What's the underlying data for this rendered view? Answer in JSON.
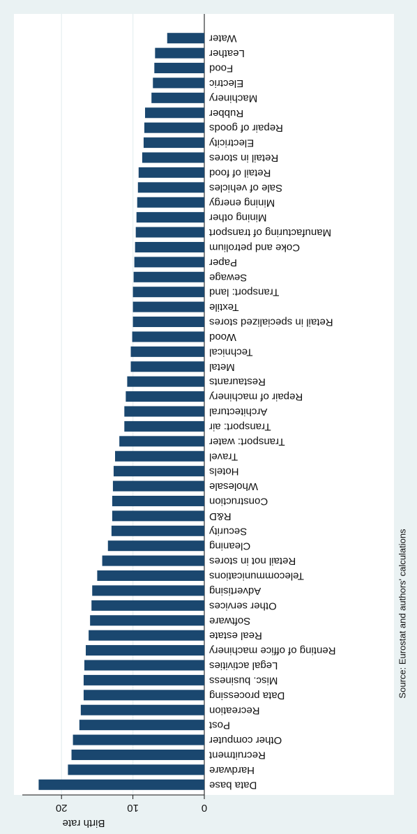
{
  "chart_data": {
    "type": "barh",
    "categories": [
      "Water",
      "Leather",
      "Food",
      "Electric",
      "Machinery",
      "Rubber",
      "Repair of goods",
      "Electricity",
      "Retail in stores",
      "Retail of food",
      "Sale of vehicles",
      "Mining energy",
      "Mining other",
      "Manufacturing of transport",
      "Coke and petrolium",
      "Paper",
      "Sewage",
      "Transport: land",
      "Textile",
      "Retail in specialized stores",
      "Wood",
      "Technical",
      "Metal",
      "Restaurants",
      "Repair of machinery",
      "Architectural",
      "Transport: air",
      "Transport: water",
      "Travel",
      "Hotels",
      "Wholesale",
      "Construction",
      "R&D",
      "Security",
      "Cleaning",
      "Retail not in stores",
      "Telecommunications",
      "Advertising",
      "Other services",
      "Software",
      "Real estate",
      "Renting of office machinery",
      "Legal activities",
      "Misc. business",
      "Data processing",
      "Recreation",
      "Post",
      "Other computer",
      "Recruitment",
      "Hardware",
      "Data base"
    ],
    "values": [
      5.2,
      6.9,
      7.0,
      7.2,
      7.4,
      8.3,
      8.4,
      8.5,
      8.7,
      9.2,
      9.3,
      9.4,
      9.5,
      9.6,
      9.7,
      9.8,
      9.9,
      10.0,
      10.0,
      10.0,
      10.1,
      10.3,
      10.3,
      10.8,
      11.0,
      11.2,
      11.2,
      11.9,
      12.5,
      12.7,
      12.8,
      12.9,
      12.9,
      13.0,
      13.5,
      14.3,
      15.0,
      15.7,
      15.8,
      16.0,
      16.2,
      16.6,
      16.8,
      16.9,
      16.9,
      17.3,
      17.5,
      18.4,
      18.6,
      19.1,
      23.2
    ],
    "color": "#1a476f",
    "xlabel": "Birth rate",
    "xlim": [
      0,
      25
    ],
    "xticks": [
      0,
      10,
      20
    ],
    "grid": true,
    "source": "Source: Eurostat and authors' calculations"
  }
}
